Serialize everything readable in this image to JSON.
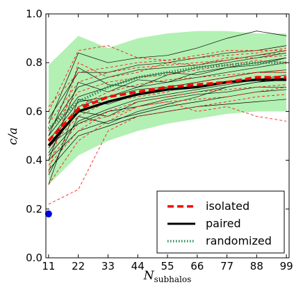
{
  "chart_data": {
    "type": "line",
    "title": "",
    "xlabel": "N",
    "xlabel_sub": "subhalos",
    "ylabel": "c/a",
    "xlim": [
      10,
      100
    ],
    "ylim": [
      0.0,
      1.0
    ],
    "xticks": [
      11,
      22,
      33,
      44,
      55,
      66,
      77,
      88,
      99
    ],
    "yticks": [
      0.0,
      0.2,
      0.4,
      0.6,
      0.8,
      1.0
    ],
    "grid": false,
    "legend_position": "lower-right",
    "x": [
      11,
      22,
      33,
      44,
      55,
      66,
      77,
      88,
      99
    ],
    "band": {
      "color": "#b3f0b3",
      "lower": [
        0.3,
        0.42,
        0.48,
        0.52,
        0.55,
        0.57,
        0.59,
        0.6,
        0.6
      ],
      "upper": [
        0.79,
        0.91,
        0.86,
        0.9,
        0.92,
        0.93,
        0.93,
        0.92,
        0.92
      ]
    },
    "series": [
      {
        "name": "isolated",
        "color": "#ff0000",
        "style": "dashed",
        "values": [
          0.48,
          0.61,
          0.66,
          0.68,
          0.7,
          0.71,
          0.72,
          0.74,
          0.74
        ]
      },
      {
        "name": "paired",
        "color": "#000000",
        "style": "solid",
        "values": [
          0.46,
          0.6,
          0.64,
          0.67,
          0.69,
          0.7,
          0.72,
          0.73,
          0.73
        ]
      },
      {
        "name": "randomized",
        "color": "#2e8b57",
        "style": "dotted",
        "values": [
          0.53,
          0.64,
          0.7,
          0.74,
          0.76,
          0.78,
          0.79,
          0.8,
          0.8
        ]
      }
    ],
    "individual_paired": [
      [
        0.55,
        0.84,
        0.8,
        0.82,
        0.83,
        0.86,
        0.9,
        0.93,
        0.91
      ],
      [
        0.5,
        0.78,
        0.71,
        0.7,
        0.75,
        0.78,
        0.8,
        0.82,
        0.84
      ],
      [
        0.4,
        0.72,
        0.68,
        0.73,
        0.72,
        0.76,
        0.78,
        0.8,
        0.82
      ],
      [
        0.3,
        0.65,
        0.63,
        0.67,
        0.7,
        0.72,
        0.74,
        0.76,
        0.77
      ],
      [
        0.34,
        0.58,
        0.55,
        0.6,
        0.63,
        0.66,
        0.7,
        0.72,
        0.73
      ],
      [
        0.43,
        0.62,
        0.66,
        0.69,
        0.7,
        0.72,
        0.74,
        0.76,
        0.76
      ],
      [
        0.46,
        0.55,
        0.6,
        0.62,
        0.65,
        0.67,
        0.68,
        0.7,
        0.7
      ],
      [
        0.5,
        0.66,
        0.7,
        0.74,
        0.76,
        0.75,
        0.78,
        0.79,
        0.82
      ],
      [
        0.45,
        0.6,
        0.58,
        0.64,
        0.66,
        0.68,
        0.7,
        0.72,
        0.74
      ],
      [
        0.52,
        0.7,
        0.74,
        0.77,
        0.78,
        0.79,
        0.81,
        0.83,
        0.85
      ],
      [
        0.4,
        0.52,
        0.56,
        0.59,
        0.62,
        0.64,
        0.66,
        0.68,
        0.69
      ],
      [
        0.48,
        0.64,
        0.66,
        0.7,
        0.72,
        0.74,
        0.76,
        0.78,
        0.8
      ],
      [
        0.36,
        0.5,
        0.54,
        0.58,
        0.6,
        0.62,
        0.63,
        0.64,
        0.65
      ],
      [
        0.57,
        0.76,
        0.76,
        0.79,
        0.8,
        0.82,
        0.84,
        0.85,
        0.87
      ],
      [
        0.42,
        0.56,
        0.61,
        0.65,
        0.67,
        0.69,
        0.71,
        0.73,
        0.75
      ]
    ],
    "individual_isolated": [
      [
        0.6,
        0.85,
        0.87,
        0.82,
        0.81,
        0.83,
        0.85,
        0.85,
        0.85
      ],
      [
        0.35,
        0.8,
        0.74,
        0.76,
        0.8,
        0.79,
        0.82,
        0.82,
        0.83
      ],
      [
        0.22,
        0.28,
        0.52,
        0.58,
        0.6,
        0.62,
        0.64,
        0.66,
        0.67
      ],
      [
        0.45,
        0.58,
        0.64,
        0.66,
        0.68,
        0.72,
        0.74,
        0.76,
        0.77
      ],
      [
        0.4,
        0.55,
        0.58,
        0.62,
        0.64,
        0.65,
        0.66,
        0.68,
        0.7
      ],
      [
        0.52,
        0.68,
        0.72,
        0.74,
        0.75,
        0.77,
        0.79,
        0.81,
        0.8
      ],
      [
        0.3,
        0.48,
        0.56,
        0.62,
        0.64,
        0.6,
        0.62,
        0.58,
        0.56
      ],
      [
        0.55,
        0.72,
        0.76,
        0.78,
        0.79,
        0.8,
        0.81,
        0.83,
        0.84
      ],
      [
        0.48,
        0.62,
        0.68,
        0.71,
        0.73,
        0.74,
        0.75,
        0.76,
        0.76
      ],
      [
        0.38,
        0.52,
        0.6,
        0.64,
        0.66,
        0.68,
        0.69,
        0.7,
        0.71
      ],
      [
        0.62,
        0.76,
        0.78,
        0.8,
        0.81,
        0.82,
        0.83,
        0.84,
        0.86
      ]
    ],
    "marker": {
      "x": 11,
      "y": 0.18,
      "color": "#0000ee"
    }
  }
}
